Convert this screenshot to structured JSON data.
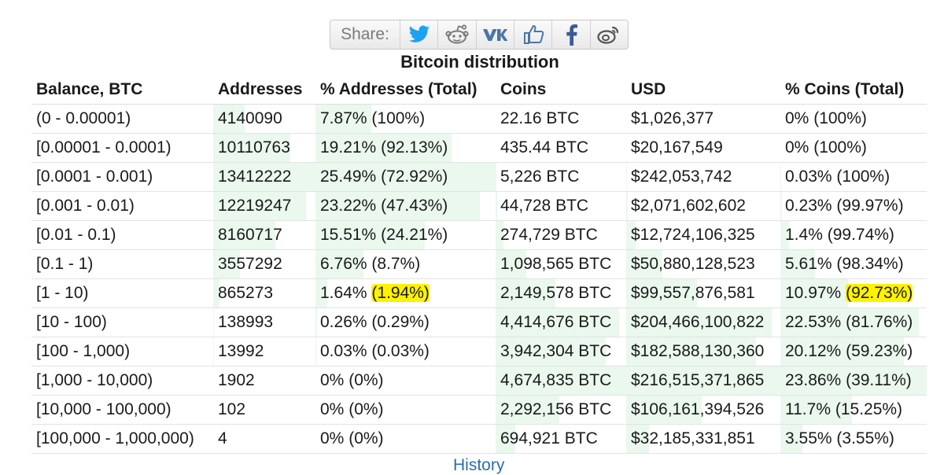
{
  "share": {
    "label": "Share:",
    "buttons": [
      {
        "name": "twitter-icon",
        "color": "#1da1f2"
      },
      {
        "name": "reddit-icon",
        "color": "#7a7a7a"
      },
      {
        "name": "vk-icon",
        "color": "#4a76a8"
      },
      {
        "name": "like-icon",
        "color": "#4a76a8"
      },
      {
        "name": "facebook-icon",
        "color": "#3b5998"
      },
      {
        "name": "weibo-icon",
        "color": "#555555"
      }
    ]
  },
  "title": "Bitcoin distribution",
  "table": {
    "headers": [
      "Balance, BTC",
      "Addresses",
      "% Addresses (Total)",
      "Coins",
      "USD",
      "% Coins (Total)"
    ],
    "rows": [
      {
        "balance": "(0 - 0.00001)",
        "addresses": "4140090",
        "pct_addr_value": "7.87%",
        "pct_addr_total": "(100%)",
        "coins": "22.16 BTC",
        "usd": "$1,026,377",
        "pct_coins_value": "0%",
        "pct_coins_total": "(100%)"
      },
      {
        "balance": "[0.00001 - 0.0001)",
        "addresses": "10110763",
        "pct_addr_value": "19.21%",
        "pct_addr_total": "(92.13%)",
        "coins": "435.44 BTC",
        "usd": "$20,167,549",
        "pct_coins_value": "0%",
        "pct_coins_total": "(100%)"
      },
      {
        "balance": "[0.0001 - 0.001)",
        "addresses": "13412222",
        "pct_addr_value": "25.49%",
        "pct_addr_total": "(72.92%)",
        "coins": "5,226 BTC",
        "usd": "$242,053,742",
        "pct_coins_value": "0.03%",
        "pct_coins_total": "(100%)"
      },
      {
        "balance": "[0.001 - 0.01)",
        "addresses": "12219247",
        "pct_addr_value": "23.22%",
        "pct_addr_total": "(47.43%)",
        "coins": "44,728 BTC",
        "usd": "$2,071,602,602",
        "pct_coins_value": "0.23%",
        "pct_coins_total": "(99.97%)"
      },
      {
        "balance": "[0.01 - 0.1)",
        "addresses": "8160717",
        "pct_addr_value": "15.51%",
        "pct_addr_total": "(24.21%)",
        "coins": "274,729 BTC",
        "usd": "$12,724,106,325",
        "pct_coins_value": "1.4%",
        "pct_coins_total": "(99.74%)"
      },
      {
        "balance": "[0.1 - 1)",
        "addresses": "3557292",
        "pct_addr_value": "6.76%",
        "pct_addr_total": "(8.7%)",
        "coins": "1,098,565 BTC",
        "usd": "$50,880,128,523",
        "pct_coins_value": "5.61%",
        "pct_coins_total": "(98.34%)"
      },
      {
        "balance": "[1 - 10)",
        "addresses": "865273",
        "pct_addr_value": "1.64%",
        "pct_addr_total": "(1.94%)",
        "coins": "2,149,578 BTC",
        "usd": "$99,557,876,581",
        "pct_coins_value": "10.97%",
        "pct_coins_total": "(92.73%)"
      },
      {
        "balance": "[10 - 100)",
        "addresses": "138993",
        "pct_addr_value": "0.26%",
        "pct_addr_total": "(0.29%)",
        "coins": "4,414,676 BTC",
        "usd": "$204,466,100,822",
        "pct_coins_value": "22.53%",
        "pct_coins_total": "(81.76%)"
      },
      {
        "balance": "[100 - 1,000)",
        "addresses": "13992",
        "pct_addr_value": "0.03%",
        "pct_addr_total": "(0.03%)",
        "coins": "3,942,304 BTC",
        "usd": "$182,588,130,360",
        "pct_coins_value": "20.12%",
        "pct_coins_total": "(59.23%)"
      },
      {
        "balance": "[1,000 - 10,000)",
        "addresses": "1902",
        "pct_addr_value": "0%",
        "pct_addr_total": "(0%)",
        "coins": "4,674,835 BTC",
        "usd": "$216,515,371,865",
        "pct_coins_value": "23.86%",
        "pct_coins_total": "(39.11%)"
      },
      {
        "balance": "[10,000 - 100,000)",
        "addresses": "102",
        "pct_addr_value": "0%",
        "pct_addr_total": "(0%)",
        "coins": "2,292,156 BTC",
        "usd": "$106,161,394,526",
        "pct_coins_value": "11.7%",
        "pct_coins_total": "(15.25%)"
      },
      {
        "balance": "[100,000 - 1,000,000)",
        "addresses": "4",
        "pct_addr_value": "0%",
        "pct_addr_total": "(0%)",
        "coins": "694,921 BTC",
        "usd": "$32,185,331,851",
        "pct_coins_value": "3.55%",
        "pct_coins_total": "(3.55%)"
      }
    ],
    "highlighted": [
      {
        "row": 6,
        "column": "pct_addr_total"
      },
      {
        "row": 6,
        "column": "pct_coins_total"
      }
    ],
    "highlight_color": "#fff200",
    "bar_color": "#eaf8ee"
  },
  "history_link": "History"
}
